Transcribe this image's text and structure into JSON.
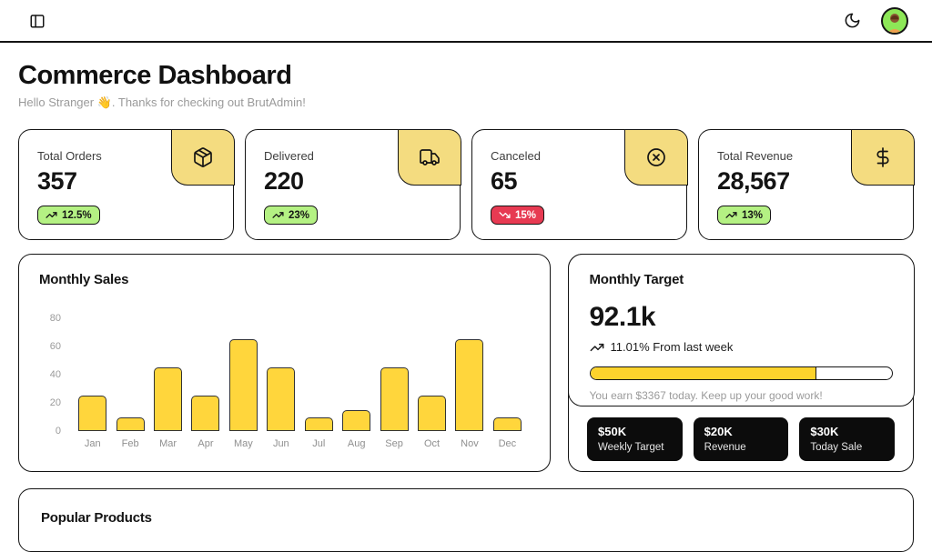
{
  "page": {
    "title": "Commerce Dashboard",
    "subtitle": "Hello Stranger 👋. Thanks for checking out BrutAdmin!"
  },
  "stats": [
    {
      "label": "Total Orders",
      "value": "357",
      "change": "12.5%",
      "trend": "up",
      "icon": "package"
    },
    {
      "label": "Delivered",
      "value": "220",
      "change": "23%",
      "trend": "up",
      "icon": "truck"
    },
    {
      "label": "Canceled",
      "value": "65",
      "change": "15%",
      "trend": "down",
      "icon": "x-circle"
    },
    {
      "label": "Total Revenue",
      "value": "28,567",
      "change": "13%",
      "trend": "up",
      "icon": "dollar-sign"
    }
  ],
  "chart_data": {
    "type": "bar",
    "title": "Monthly Sales",
    "categories": [
      "Jan",
      "Feb",
      "Mar",
      "Apr",
      "May",
      "Jun",
      "Jul",
      "Aug",
      "Sep",
      "Oct",
      "Nov",
      "Dec"
    ],
    "values": [
      25,
      10,
      45,
      25,
      65,
      45,
      10,
      15,
      45,
      25,
      65,
      10
    ],
    "xlabel": "",
    "ylabel": "",
    "ylim": [
      0,
      80
    ],
    "yticks": [
      0,
      20,
      40,
      60,
      80
    ],
    "grid": false,
    "legend": false,
    "bar_color": "#FFD63C"
  },
  "monthly_target": {
    "title": "Monthly Target",
    "value": "92.1k",
    "trend_text": "11.01% From last week",
    "progress_percent": 75,
    "earn_text": "You earn $3367 today. Keep up your good work!",
    "chips": [
      {
        "value": "$50K",
        "label": "Weekly Target"
      },
      {
        "value": "$20K",
        "label": "Revenue"
      },
      {
        "value": "$30K",
        "label": "Today Sale"
      }
    ]
  },
  "popular_products": {
    "title": "Popular Products"
  },
  "colors": {
    "accent_yellow": "#FFD63C",
    "tab_yellow": "#F4DC80",
    "badge_green": "#B4F183",
    "badge_red": "#E73A52",
    "avatar_green": "#8DE757",
    "border": "#141414"
  }
}
